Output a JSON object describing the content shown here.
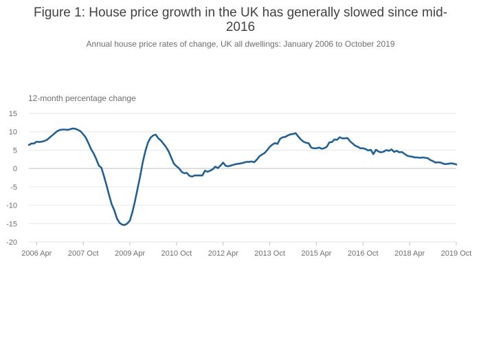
{
  "header": {
    "title": "Figure 1: House price growth in the UK has generally slowed since mid-2016",
    "subtitle": "Annual house price rates of change, UK all dwellings: January 2006 to October 2019"
  },
  "chart_data": {
    "type": "line",
    "title": "Figure 1: House price growth in the UK has generally slowed since mid-2016",
    "subtitle": "Annual house price rates of change, UK all dwellings: January 2006 to October 2019",
    "ylabel": "12-month percentage change",
    "xlabel": "",
    "ylim": [
      -20,
      15
    ],
    "yticks": [
      15,
      10,
      5,
      0,
      -5,
      -10,
      -15,
      -20
    ],
    "xticks": [
      "2006 Apr",
      "2007 Oct",
      "2009 Apr",
      "2010 Oct",
      "2012 Apr",
      "2013 Oct",
      "2015 Apr",
      "2016 Oct",
      "2018 Apr",
      "2019 Oct"
    ],
    "xtick_months": [
      3,
      21,
      39,
      57,
      75,
      93,
      111,
      129,
      147,
      165
    ],
    "start": "2006 Jan",
    "end": "2019 Oct",
    "grid": true,
    "color": "#206095",
    "series": [
      {
        "name": "UK all dwellings",
        "values": [
          6.4,
          6.8,
          6.8,
          7.3,
          7.2,
          7.3,
          7.5,
          7.8,
          8.4,
          9.0,
          9.6,
          10.2,
          10.5,
          10.6,
          10.6,
          10.5,
          10.7,
          10.9,
          10.8,
          10.5,
          10.1,
          9.3,
          8.4,
          6.9,
          5.3,
          4.1,
          2.6,
          0.8,
          0.2,
          -2.1,
          -4.6,
          -7.3,
          -9.8,
          -11.4,
          -13.6,
          -14.8,
          -15.3,
          -15.4,
          -15.0,
          -14.2,
          -11.8,
          -8.8,
          -5.4,
          -2.0,
          1.8,
          4.8,
          7.1,
          8.4,
          9.0,
          9.2,
          8.2,
          7.6,
          6.7,
          5.8,
          4.6,
          2.9,
          1.3,
          0.6,
          0.0,
          -0.9,
          -1.3,
          -1.2,
          -2.0,
          -2.2,
          -1.9,
          -1.9,
          -1.9,
          -1.9,
          -0.6,
          -0.9,
          -0.6,
          -0.2,
          0.5,
          0.1,
          0.8,
          1.6,
          0.7,
          0.6,
          0.8,
          1.0,
          1.2,
          1.3,
          1.4,
          1.6,
          1.8,
          1.8,
          1.9,
          1.7,
          2.4,
          3.3,
          3.8,
          4.2,
          5.0,
          5.9,
          6.5,
          6.9,
          6.7,
          8.1,
          8.5,
          8.6,
          9.0,
          9.3,
          9.4,
          9.6,
          8.7,
          7.9,
          7.3,
          7.0,
          6.9,
          5.7,
          5.5,
          5.5,
          5.7,
          5.4,
          5.5,
          5.9,
          7.1,
          7.2,
          7.9,
          7.8,
          8.5,
          8.2,
          8.2,
          8.3,
          7.4,
          6.8,
          6.2,
          5.9,
          5.5,
          5.5,
          5.3,
          4.9,
          5.1,
          3.9,
          5.1,
          4.6,
          4.4,
          4.6,
          5.0,
          4.8,
          5.2,
          4.5,
          4.8,
          4.4,
          4.5,
          4.0,
          3.5,
          3.3,
          3.2,
          3.0,
          3.0,
          2.9,
          3.0,
          2.9,
          2.8,
          2.3,
          2.0,
          1.6,
          1.7,
          1.6,
          1.3,
          1.2,
          1.3,
          1.4,
          1.3,
          1.1
        ]
      }
    ]
  }
}
